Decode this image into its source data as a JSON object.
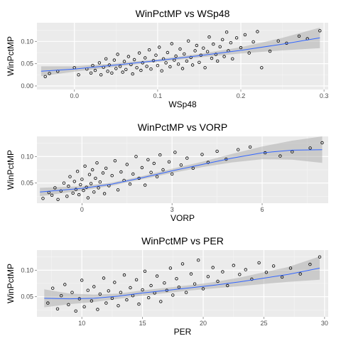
{
  "chart_data": [
    {
      "type": "scatter",
      "title": "WinPctMP vs WSp48",
      "xlabel": "WSp48",
      "ylabel": "WinPctMP",
      "xlim": [
        -0.045,
        0.305
      ],
      "ylim": [
        -0.008,
        0.142
      ],
      "x_ticks": [
        0.0,
        0.1,
        0.2,
        0.3
      ],
      "x_tick_labels": [
        "0.0",
        "0.1",
        "0.2",
        "0.3"
      ],
      "y_ticks": [
        0.0,
        0.05,
        0.1
      ],
      "y_tick_labels": [
        "0.00",
        "0.05",
        "0.10"
      ],
      "grid": true,
      "smooth": {
        "x": [
          -0.04,
          0.0,
          0.05,
          0.1,
          0.15,
          0.2,
          0.25,
          0.295
        ],
        "y": [
          0.033,
          0.038,
          0.047,
          0.057,
          0.068,
          0.08,
          0.094,
          0.108
        ],
        "lower": [
          0.022,
          0.032,
          0.043,
          0.054,
          0.064,
          0.073,
          0.08,
          0.085
        ],
        "upper": [
          0.044,
          0.044,
          0.051,
          0.06,
          0.072,
          0.087,
          0.108,
          0.131
        ]
      },
      "points": [
        [
          -0.035,
          0.021
        ],
        [
          -0.03,
          0.028
        ],
        [
          -0.02,
          0.033
        ],
        [
          0.0,
          0.041
        ],
        [
          0.005,
          0.025
        ],
        [
          0.015,
          0.038
        ],
        [
          0.02,
          0.029
        ],
        [
          0.022,
          0.046
        ],
        [
          0.025,
          0.035
        ],
        [
          0.03,
          0.052
        ],
        [
          0.032,
          0.025
        ],
        [
          0.035,
          0.042
        ],
        [
          0.038,
          0.061
        ],
        [
          0.04,
          0.033
        ],
        [
          0.042,
          0.047
        ],
        [
          0.045,
          0.029
        ],
        [
          0.048,
          0.058
        ],
        [
          0.05,
          0.039
        ],
        [
          0.052,
          0.071
        ],
        [
          0.055,
          0.044
        ],
        [
          0.058,
          0.031
        ],
        [
          0.06,
          0.055
        ],
        [
          0.062,
          0.037
        ],
        [
          0.065,
          0.066
        ],
        [
          0.068,
          0.048
        ],
        [
          0.07,
          0.027
        ],
        [
          0.072,
          0.059
        ],
        [
          0.075,
          0.041
        ],
        [
          0.078,
          0.074
        ],
        [
          0.08,
          0.035
        ],
        [
          0.082,
          0.052
        ],
        [
          0.085,
          0.063
        ],
        [
          0.087,
          0.044
        ],
        [
          0.09,
          0.081
        ],
        [
          0.092,
          0.038
        ],
        [
          0.095,
          0.057
        ],
        [
          0.098,
          0.069
        ],
        [
          0.1,
          0.046
        ],
        [
          0.102,
          0.087
        ],
        [
          0.105,
          0.034
        ],
        [
          0.107,
          0.061
        ],
        [
          0.11,
          0.052
        ],
        [
          0.112,
          0.075
        ],
        [
          0.115,
          0.043
        ],
        [
          0.117,
          0.095
        ],
        [
          0.12,
          0.058
        ],
        [
          0.122,
          0.067
        ],
        [
          0.125,
          0.049
        ],
        [
          0.127,
          0.083
        ],
        [
          0.13,
          0.039
        ],
        [
          0.132,
          0.072
        ],
        [
          0.135,
          0.056
        ],
        [
          0.137,
          0.101
        ],
        [
          0.14,
          0.064
        ],
        [
          0.142,
          0.047
        ],
        [
          0.145,
          0.079
        ],
        [
          0.147,
          0.091
        ],
        [
          0.15,
          0.053
        ],
        [
          0.152,
          0.069
        ],
        [
          0.155,
          0.085
        ],
        [
          0.157,
          0.041
        ],
        [
          0.16,
          0.077
        ],
        [
          0.162,
          0.11
        ],
        [
          0.165,
          0.062
        ],
        [
          0.167,
          0.094
        ],
        [
          0.17,
          0.071
        ],
        [
          0.172,
          0.056
        ],
        [
          0.175,
          0.088
        ],
        [
          0.178,
          0.104
        ],
        [
          0.18,
          0.066
        ],
        [
          0.183,
          0.121
        ],
        [
          0.185,
          0.079
        ],
        [
          0.188,
          0.097
        ],
        [
          0.19,
          0.061
        ],
        [
          0.195,
          0.108
        ],
        [
          0.2,
          0.086
        ],
        [
          0.205,
          0.115
        ],
        [
          0.21,
          0.074
        ],
        [
          0.215,
          0.099
        ],
        [
          0.22,
          0.122
        ],
        [
          0.225,
          0.041
        ],
        [
          0.235,
          0.078
        ],
        [
          0.245,
          0.101
        ],
        [
          0.255,
          0.096
        ],
        [
          0.27,
          0.112
        ],
        [
          0.28,
          0.106
        ],
        [
          0.295,
          0.124
        ]
      ]
    },
    {
      "type": "scatter",
      "title": "WinPctMP vs VORP",
      "xlabel": "VORP",
      "ylabel": "WinPctMP",
      "xlim": [
        -1.5,
        8.2
      ],
      "ylim": [
        0.012,
        0.138
      ],
      "x_ticks": [
        0,
        3,
        6
      ],
      "x_tick_labels": [
        "0",
        "3",
        "6"
      ],
      "y_ticks": [
        0.05,
        0.1
      ],
      "y_tick_labels": [
        "0.05",
        "0.10"
      ],
      "grid": true,
      "smooth": {
        "x": [
          -1.4,
          0,
          1,
          2,
          3,
          4,
          5,
          6,
          7,
          8.0
        ],
        "y": [
          0.033,
          0.04,
          0.048,
          0.06,
          0.073,
          0.085,
          0.097,
          0.107,
          0.112,
          0.113
        ],
        "lower": [
          0.025,
          0.036,
          0.045,
          0.057,
          0.069,
          0.08,
          0.089,
          0.095,
          0.094,
          0.088
        ],
        "upper": [
          0.041,
          0.044,
          0.051,
          0.063,
          0.077,
          0.09,
          0.105,
          0.119,
          0.13,
          0.138
        ]
      },
      "points": [
        [
          -1.3,
          0.021
        ],
        [
          -1.1,
          0.032
        ],
        [
          -1.0,
          0.027
        ],
        [
          -0.9,
          0.041
        ],
        [
          -0.8,
          0.019
        ],
        [
          -0.7,
          0.035
        ],
        [
          -0.6,
          0.05
        ],
        [
          -0.5,
          0.025
        ],
        [
          -0.45,
          0.044
        ],
        [
          -0.4,
          0.062
        ],
        [
          -0.3,
          0.031
        ],
        [
          -0.25,
          0.053
        ],
        [
          -0.2,
          0.038
        ],
        [
          -0.15,
          0.072
        ],
        [
          -0.1,
          0.028
        ],
        [
          -0.05,
          0.047
        ],
        [
          0.0,
          0.057
        ],
        [
          0.05,
          0.036
        ],
        [
          0.1,
          0.082
        ],
        [
          0.15,
          0.042
        ],
        [
          0.2,
          0.022
        ],
        [
          0.25,
          0.066
        ],
        [
          0.3,
          0.049
        ],
        [
          0.35,
          0.075
        ],
        [
          0.4,
          0.033
        ],
        [
          0.45,
          0.059
        ],
        [
          0.5,
          0.088
        ],
        [
          0.55,
          0.041
        ],
        [
          0.6,
          0.052
        ],
        [
          0.7,
          0.069
        ],
        [
          0.75,
          0.03
        ],
        [
          0.8,
          0.078
        ],
        [
          0.9,
          0.045
        ],
        [
          1.0,
          0.064
        ],
        [
          1.1,
          0.092
        ],
        [
          1.2,
          0.037
        ],
        [
          1.3,
          0.071
        ],
        [
          1.4,
          0.055
        ],
        [
          1.5,
          0.085
        ],
        [
          1.6,
          0.048
        ],
        [
          1.7,
          0.067
        ],
        [
          1.8,
          0.1
        ],
        [
          1.9,
          0.059
        ],
        [
          2.0,
          0.079
        ],
        [
          2.1,
          0.046
        ],
        [
          2.2,
          0.094
        ],
        [
          2.3,
          0.07
        ],
        [
          2.4,
          0.087
        ],
        [
          2.5,
          0.062
        ],
        [
          2.6,
          0.103
        ],
        [
          2.7,
          0.075
        ],
        [
          2.9,
          0.09
        ],
        [
          3.0,
          0.067
        ],
        [
          3.1,
          0.108
        ],
        [
          3.3,
          0.084
        ],
        [
          3.5,
          0.097
        ],
        [
          3.7,
          0.078
        ],
        [
          4.0,
          0.104
        ],
        [
          4.2,
          0.089
        ],
        [
          4.5,
          0.11
        ],
        [
          4.8,
          0.095
        ],
        [
          5.2,
          0.113
        ],
        [
          5.6,
          0.118
        ],
        [
          6.1,
          0.107
        ],
        [
          6.6,
          0.101
        ],
        [
          7.0,
          0.109
        ],
        [
          7.6,
          0.116
        ],
        [
          8.0,
          0.126
        ]
      ]
    },
    {
      "type": "scatter",
      "title": "WinPctMP vs PER",
      "xlabel": "PER",
      "ylabel": "WinPctMP",
      "xlim": [
        6.3,
        30.3
      ],
      "ylim": [
        0.012,
        0.138
      ],
      "x_ticks": [
        10,
        15,
        20,
        25,
        30
      ],
      "x_tick_labels": [
        "10",
        "15",
        "20",
        "25",
        "30"
      ],
      "y_ticks": [
        0.05,
        0.1
      ],
      "y_tick_labels": [
        "0.05",
        "0.10"
      ],
      "grid": true,
      "smooth": {
        "x": [
          6.9,
          9,
          11,
          13,
          15,
          17,
          19,
          21,
          23,
          25,
          27,
          29.6
        ],
        "y": [
          0.047,
          0.046,
          0.047,
          0.051,
          0.057,
          0.062,
          0.067,
          0.072,
          0.078,
          0.085,
          0.092,
          0.104
        ],
        "lower": [
          0.03,
          0.036,
          0.04,
          0.046,
          0.052,
          0.057,
          0.062,
          0.066,
          0.07,
          0.074,
          0.078,
          0.082
        ],
        "upper": [
          0.064,
          0.056,
          0.054,
          0.056,
          0.062,
          0.067,
          0.072,
          0.078,
          0.086,
          0.096,
          0.106,
          0.126
        ]
      },
      "points": [
        [
          7.2,
          0.038
        ],
        [
          7.6,
          0.066
        ],
        [
          8.0,
          0.027
        ],
        [
          8.3,
          0.052
        ],
        [
          8.6,
          0.073
        ],
        [
          8.9,
          0.035
        ],
        [
          9.2,
          0.058
        ],
        [
          9.5,
          0.023
        ],
        [
          9.8,
          0.046
        ],
        [
          10.0,
          0.081
        ],
        [
          10.2,
          0.031
        ],
        [
          10.5,
          0.062
        ],
        [
          10.8,
          0.042
        ],
        [
          11.0,
          0.069
        ],
        [
          11.3,
          0.026
        ],
        [
          11.5,
          0.055
        ],
        [
          11.8,
          0.085
        ],
        [
          12.0,
          0.038
        ],
        [
          12.2,
          0.061
        ],
        [
          12.5,
          0.047
        ],
        [
          12.7,
          0.077
        ],
        [
          13.0,
          0.033
        ],
        [
          13.2,
          0.058
        ],
        [
          13.5,
          0.091
        ],
        [
          13.7,
          0.044
        ],
        [
          14.0,
          0.067
        ],
        [
          14.2,
          0.052
        ],
        [
          14.5,
          0.082
        ],
        [
          14.7,
          0.036
        ],
        [
          15.0,
          0.063
        ],
        [
          15.2,
          0.098
        ],
        [
          15.5,
          0.048
        ],
        [
          15.7,
          0.071
        ],
        [
          16.0,
          0.057
        ],
        [
          16.2,
          0.089
        ],
        [
          16.5,
          0.041
        ],
        [
          16.8,
          0.076
        ],
        [
          17.0,
          0.062
        ],
        [
          17.3,
          0.104
        ],
        [
          17.5,
          0.053
        ],
        [
          17.8,
          0.084
        ],
        [
          18.0,
          0.068
        ],
        [
          18.3,
          0.112
        ],
        [
          18.6,
          0.058
        ],
        [
          19.0,
          0.093
        ],
        [
          19.3,
          0.074
        ],
        [
          19.6,
          0.119
        ],
        [
          20.0,
          0.065
        ],
        [
          20.4,
          0.088
        ],
        [
          20.8,
          0.105
        ],
        [
          21.2,
          0.079
        ],
        [
          21.6,
          0.097
        ],
        [
          22.0,
          0.071
        ],
        [
          22.5,
          0.109
        ],
        [
          23.0,
          0.092
        ],
        [
          23.5,
          0.101
        ],
        [
          24.0,
          0.083
        ],
        [
          24.6,
          0.114
        ],
        [
          25.2,
          0.096
        ],
        [
          25.8,
          0.108
        ],
        [
          26.5,
          0.087
        ],
        [
          27.2,
          0.104
        ],
        [
          28.0,
          0.093
        ],
        [
          28.8,
          0.111
        ],
        [
          29.6,
          0.125
        ]
      ]
    }
  ]
}
